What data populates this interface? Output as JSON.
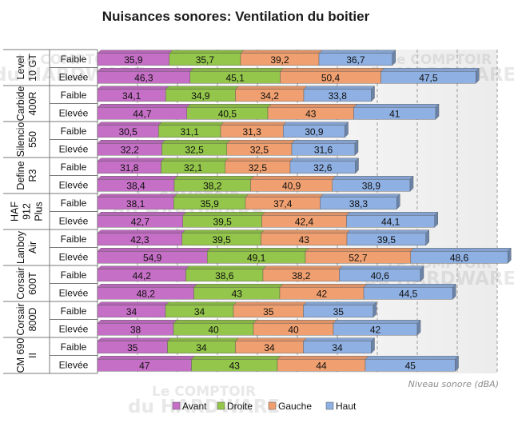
{
  "chart_data": {
    "type": "bar",
    "orientation": "horizontal",
    "stacked": true,
    "title": "Nuisances sonores: Ventilation du boitier",
    "xlabel": "Niveau sonore (dBA)",
    "xlim": [
      0,
      200
    ],
    "grid": true,
    "legend_position": "bottom",
    "groups": [
      {
        "name": "Level 10 GT",
        "lines": [
          "Level",
          "10 GT"
        ]
      },
      {
        "name": "Carbide 400R",
        "lines": [
          "Carbide",
          "400R"
        ]
      },
      {
        "name": "Silencio 550",
        "lines": [
          "Silencio",
          "550"
        ]
      },
      {
        "name": "Define R3",
        "lines": [
          "Define",
          "R3"
        ]
      },
      {
        "name": "HAF 912 Plus",
        "lines": [
          "HAF",
          "912",
          "Plus"
        ]
      },
      {
        "name": "Lanboy Air",
        "lines": [
          "Lanboy",
          "Air"
        ]
      },
      {
        "name": "Corsair 600T",
        "lines": [
          "Corsair",
          "600T"
        ]
      },
      {
        "name": "Corsair 800D",
        "lines": [
          "Corsair",
          "800D"
        ]
      },
      {
        "name": "CM 690 II",
        "lines": [
          "CM 690",
          "II"
        ]
      }
    ],
    "row_labels": [
      "Faible",
      "Elevée"
    ],
    "series": [
      {
        "name": "Avant",
        "color": "#c66fc6",
        "values": [
          35.9,
          46.3,
          34.1,
          44.7,
          30.5,
          32.2,
          31.8,
          38.4,
          38.1,
          42.7,
          42.3,
          54.9,
          44.2,
          48.2,
          34,
          38,
          35,
          47
        ],
        "labels": [
          "35,9",
          "46,3",
          "34,1",
          "44,7",
          "30,5",
          "32,2",
          "31,8",
          "38,4",
          "38,1",
          "42,7",
          "42,3",
          "54,9",
          "44,2",
          "48,2",
          "34",
          "38",
          "35",
          "47"
        ]
      },
      {
        "name": "Droite",
        "color": "#93c64a",
        "values": [
          35.7,
          45.1,
          34.9,
          40.5,
          31.1,
          32.5,
          32.1,
          38.2,
          35.9,
          39.5,
          39.5,
          49.1,
          38.6,
          43,
          34,
          40,
          34,
          43
        ],
        "labels": [
          "35,7",
          "45,1",
          "34,9",
          "40,5",
          "31,1",
          "32,5",
          "32,1",
          "38,2",
          "35,9",
          "39,5",
          "39,5",
          "49,1",
          "38,6",
          "43",
          "34",
          "40",
          "34",
          "43"
        ]
      },
      {
        "name": "Gauche",
        "color": "#f0a070",
        "values": [
          39.2,
          50.4,
          34.2,
          43,
          31.3,
          32.5,
          32.5,
          40.9,
          37.4,
          42.4,
          43,
          52.7,
          38.2,
          42,
          35,
          40,
          34,
          44
        ],
        "labels": [
          "39,2",
          "50,4",
          "34,2",
          "43",
          "31,3",
          "32,5",
          "32,5",
          "40,9",
          "37,4",
          "42,4",
          "43",
          "52,7",
          "38,2",
          "42",
          "35",
          "40",
          "34",
          "44"
        ]
      },
      {
        "name": "Haut",
        "color": "#8fb0e2",
        "values": [
          36.7,
          47.5,
          33.8,
          41,
          30.9,
          31.6,
          32.6,
          38.9,
          38.3,
          44.1,
          39.5,
          48.6,
          40.6,
          44.5,
          35,
          42,
          34,
          45
        ],
        "labels": [
          "36,7",
          "47,5",
          "33,8",
          "41",
          "30,9",
          "31,6",
          "32,6",
          "38,9",
          "38,3",
          "44,1",
          "39,5",
          "48,6",
          "40,6",
          "44,5",
          "35",
          "42",
          "34",
          "45"
        ]
      }
    ]
  },
  "watermark": {
    "line1": "Le COMPTOIR",
    "line2": "du HARDWARE"
  }
}
